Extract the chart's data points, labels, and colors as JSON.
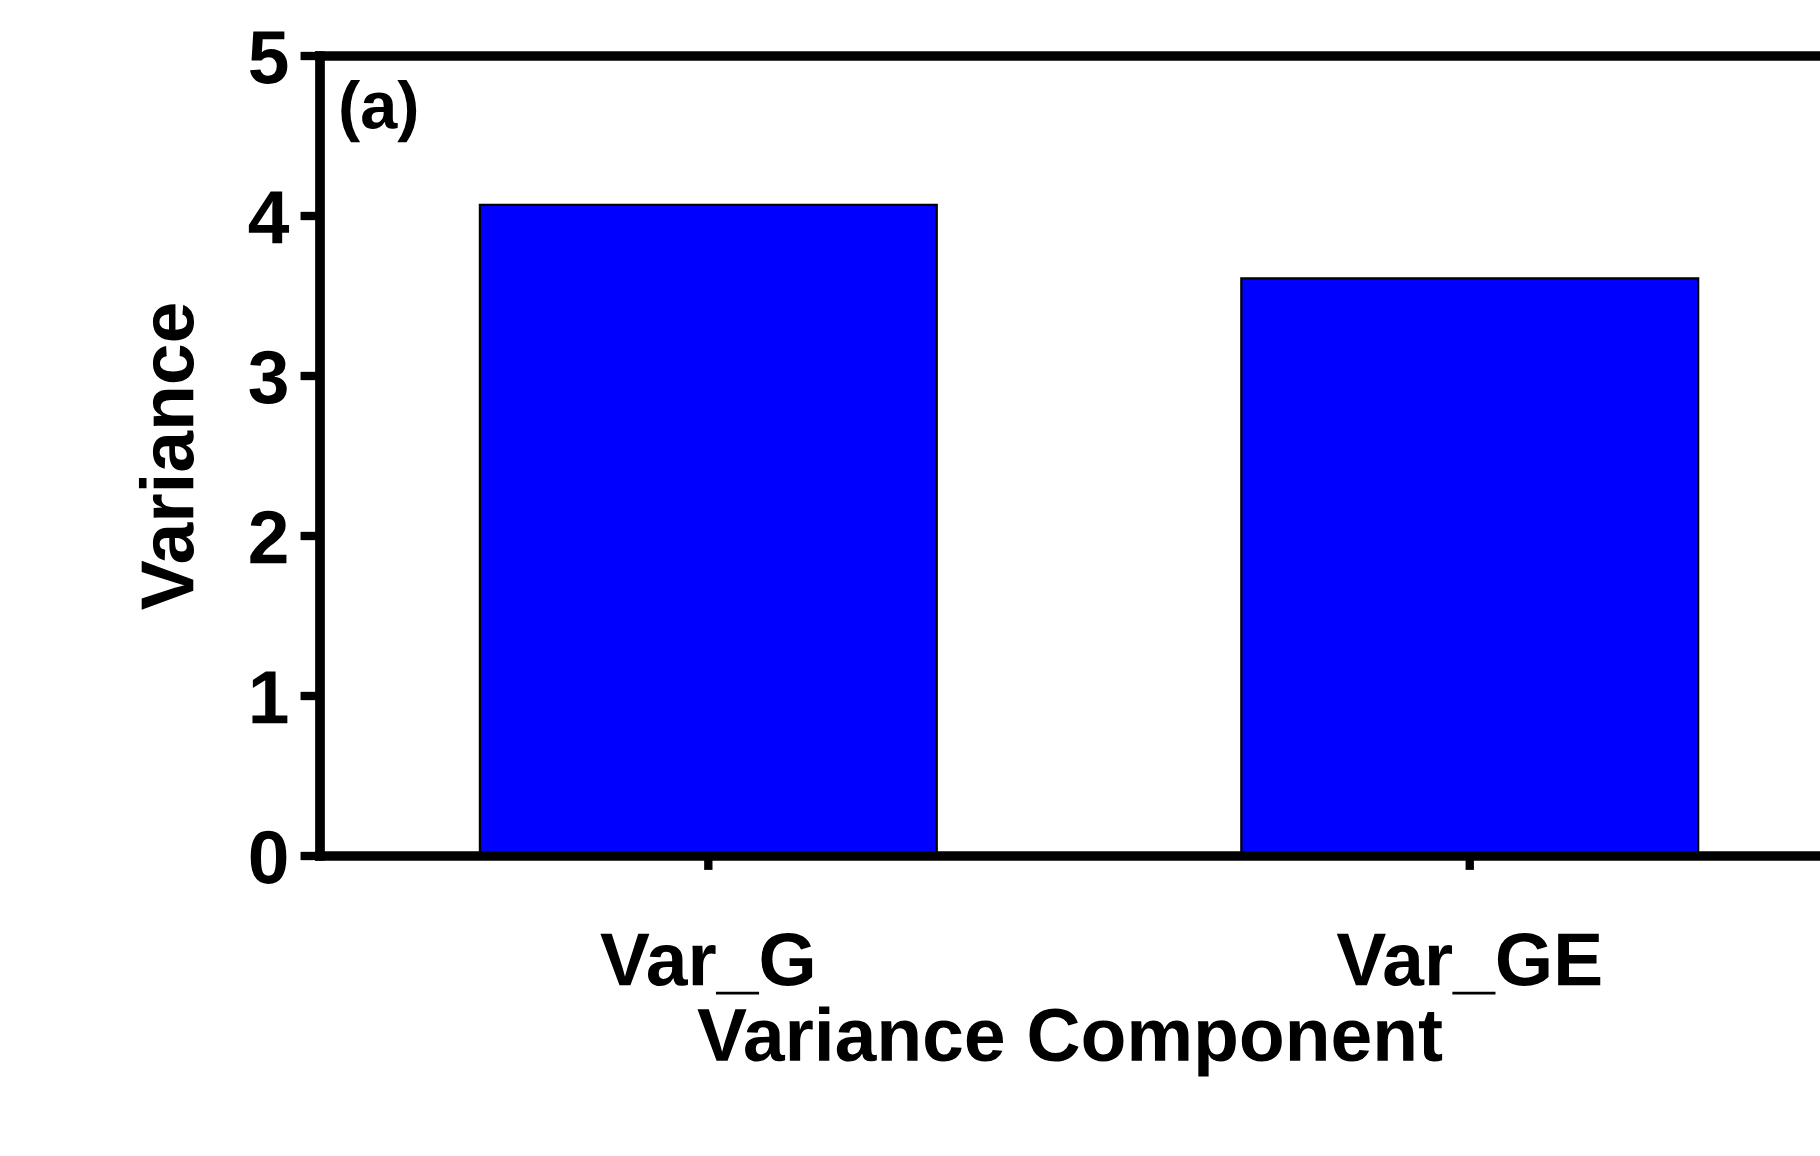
{
  "chart_data": {
    "type": "bar",
    "xlabel": "Variance Component",
    "ylabel": "Variance",
    "categories": [
      "Var_G",
      "Var_GE"
    ],
    "values": [
      4.07,
      3.61
    ],
    "color": "#0000ff",
    "ylim": [
      0,
      5
    ],
    "yticks": [
      0,
      1,
      2,
      3,
      4,
      5
    ],
    "grid": false,
    "annotations": [
      "(a)"
    ]
  }
}
